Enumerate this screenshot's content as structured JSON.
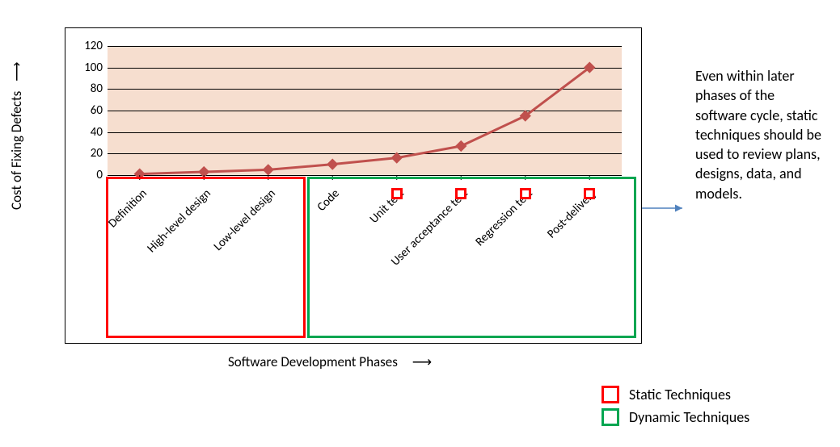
{
  "chart": {
    "type": "line",
    "categories": [
      "Definition",
      "High-level design",
      "Low-level design",
      "Code",
      "Unit test",
      "User acceptance test",
      "Regression test",
      "Post-delivery"
    ],
    "values": [
      1,
      3,
      5,
      10,
      16,
      27,
      55,
      100
    ],
    "ylim": [
      0,
      120
    ],
    "ytick_step": 20,
    "yticks": [
      0,
      20,
      40,
      60,
      80,
      100,
      120
    ],
    "plot_bg": "#f6decf",
    "grid_color": "#000000",
    "line_color": "#c0504d",
    "marker_color": "#c0504d",
    "line_width": 3,
    "marker_size": 10,
    "outer_border": "#000000",
    "label_fontsize": 15,
    "axis_title_fontsize": 17
  },
  "axes": {
    "y_label": "Cost of Fixing Defects",
    "x_label": "Software Development Phases"
  },
  "boxes": {
    "static_color": "#ff0000",
    "dynamic_color": "#00a651",
    "small_marker_color": "#ff0000",
    "small_marker_categories": [
      "Unit test",
      "User acceptance test",
      "Regression test",
      "Post-delivery"
    ]
  },
  "annotation": {
    "text": "Even within later phases of the software cycle, static techniques should be used to review plans, designs, data, and models."
  },
  "legend": {
    "items": [
      {
        "label": "Static Techniques",
        "color": "#ff0000"
      },
      {
        "label": "Dynamic Techniques",
        "color": "#00a651"
      }
    ]
  },
  "arrow_color": "#4f81bd"
}
